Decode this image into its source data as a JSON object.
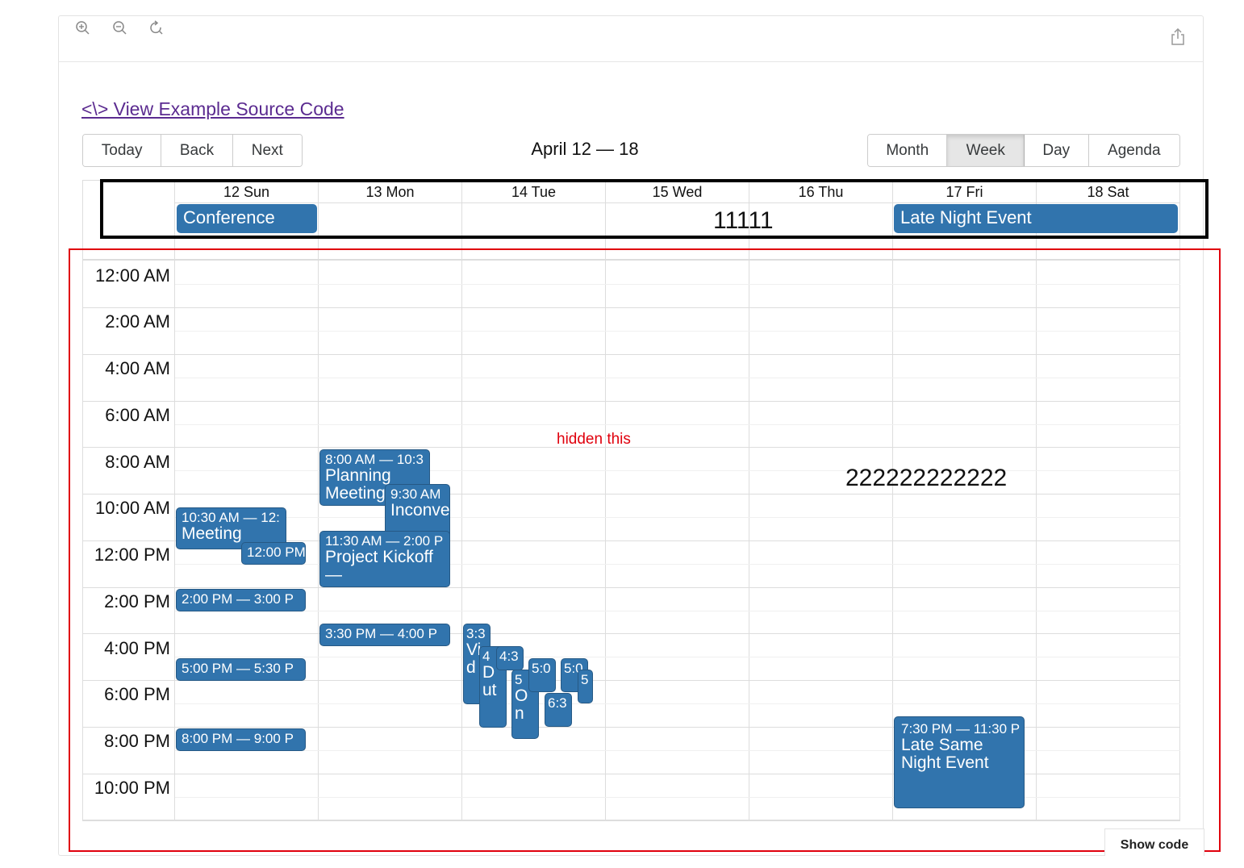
{
  "icons": {
    "zoom_in": "zoom-in-icon",
    "zoom_out": "zoom-out-icon",
    "reset": "reset-icon",
    "share": "share-icon"
  },
  "source_link": "<\\> View Example Source Code",
  "toolbar": {
    "today": "Today",
    "back": "Back",
    "next": "Next",
    "label": "April 12 — 18",
    "views": [
      "Month",
      "Week",
      "Day",
      "Agenda"
    ],
    "active_view": "Week"
  },
  "days": [
    "12 Sun",
    "13 Mon",
    "14 Tue",
    "15 Wed",
    "16 Thu",
    "17 Fri",
    "18 Sat"
  ],
  "allday_events": {
    "conference": "Conference",
    "late_night": "Late Night Event"
  },
  "annotations": {
    "box1": "11111",
    "box2": "222222222222",
    "hidden": "hidden this"
  },
  "times": [
    "12:00 AM",
    "2:00 AM",
    "4:00 AM",
    "6:00 AM",
    "8:00 AM",
    "10:00 AM",
    "12:00 PM",
    "2:00 PM",
    "4:00 PM",
    "6:00 PM",
    "8:00 PM",
    "10:00 PM"
  ],
  "events": {
    "meeting_time": "10:30 AM — 12:",
    "meeting_title": "Meeting",
    "lunch_time": "12:00 PM",
    "sun_2pm": "2:00 PM — 3:00 P",
    "sun_5pm": "5:00 PM — 5:30 P",
    "sun_8pm": "8:00 PM — 9:00 P",
    "planning_time": "8:00 AM — 10:3",
    "planning_title": "Planning Meeting",
    "incon_time": "9:30 AM",
    "incon_title": "Inconvenient",
    "kickoff_time": "11:30 AM — 2:00 P",
    "kickoff_title": "Project Kickoff —",
    "mon_330": "3:30 PM — 4:00 P",
    "tue_a_time": "3:3",
    "tue_a_title": "Vid",
    "tue_b_time": "4",
    "tue_b_title": "Dut",
    "tue_c_time": "4:3",
    "tue_d_time": "5",
    "tue_d_title": "On",
    "tue_e_time": "5:0",
    "tue_f_time": "6:3",
    "tue_g_time": "5:0",
    "tue_h_time": "5",
    "late_same_time": "7:30 PM — 11:30 P",
    "late_same_title": "Late Same Night Event"
  },
  "show_code": "Show code"
}
